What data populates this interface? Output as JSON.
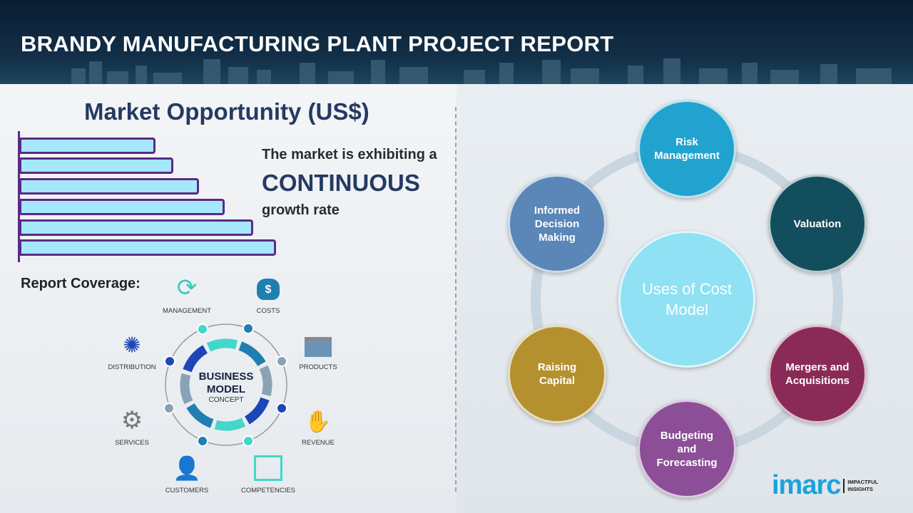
{
  "header": {
    "title": "BRANDY MANUFACTURING PLANT PROJECT REPORT"
  },
  "market": {
    "title": "Market Opportunity (US$)",
    "text_line1": "The market is exhibiting a",
    "text_emphasis": "CONTINUOUS",
    "text_line3": "growth rate",
    "bar_color": "#a6e8fb",
    "bar_border_color": "#5b2a86",
    "chart_data": {
      "type": "bar",
      "orientation": "horizontal",
      "values_relative_percent": [
        53,
        60,
        70,
        80,
        91,
        100
      ]
    }
  },
  "coverage": {
    "title": "Report Coverage:",
    "center_line1": "BUSINESS",
    "center_line2": "MODEL",
    "center_line3": "CONCEPT",
    "items": [
      {
        "label": "MANAGEMENT",
        "icon": "lightbulb-cycle-icon"
      },
      {
        "label": "COSTS",
        "icon": "money-bag-icon"
      },
      {
        "label": "PRODUCTS",
        "icon": "box-icon"
      },
      {
        "label": "REVENUE",
        "icon": "hand-coins-icon"
      },
      {
        "label": "COMPETENCIES",
        "icon": "org-chart-icon"
      },
      {
        "label": "CUSTOMERS",
        "icon": "user-icon"
      },
      {
        "label": "SERVICES",
        "icon": "gears-icon"
      },
      {
        "label": "DISTRIBUTION",
        "icon": "network-icon"
      }
    ]
  },
  "uses": {
    "center": "Uses of Cost Model",
    "items": [
      {
        "label": "Risk Management",
        "color": "#22a3cf"
      },
      {
        "label": "Valuation",
        "color": "#134e5e"
      },
      {
        "label": "Mergers and Acquisitions",
        "color": "#8a2a56"
      },
      {
        "label": "Budgeting and Forecasting",
        "color": "#8c4f97"
      },
      {
        "label": "Raising Capital",
        "color": "#b4902f"
      },
      {
        "label": "Informed Decision Making",
        "color": "#5a86b8"
      }
    ],
    "center_color": "#8fe1f3"
  },
  "logo": {
    "word": "imarc",
    "tag_line1": "IMPACTFUL",
    "tag_line2": "INSIGHTS"
  }
}
